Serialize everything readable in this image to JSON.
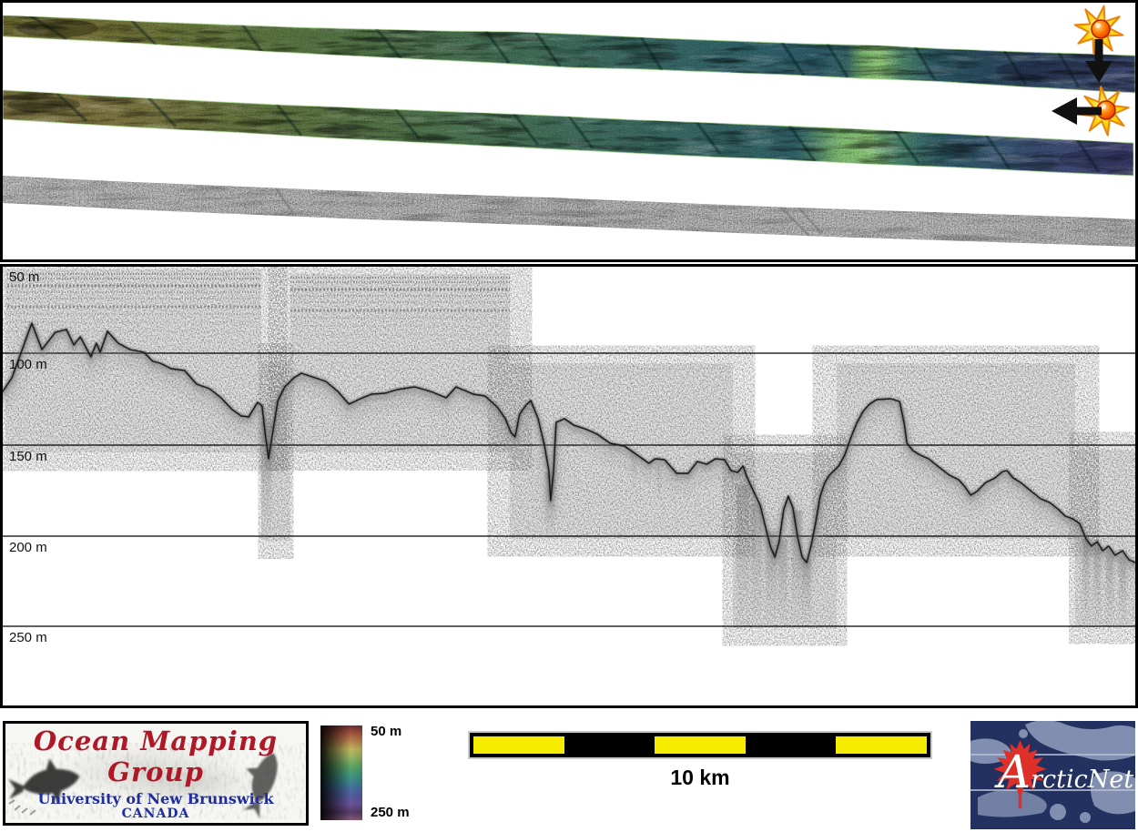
{
  "top_panel": {
    "icons": {
      "marker1": "starburst-down-arrow",
      "marker2": "starburst-left-arrow"
    },
    "colors": {
      "star_yellow": "#ffd400",
      "star_outline": "#e8830f",
      "star_ball": "#ff5500",
      "arrow_black": "#111111"
    }
  },
  "profile": {
    "depth_labels": [
      "50 m",
      "100 m",
      "150 m",
      "200 m",
      "250 m"
    ]
  },
  "colorbar": {
    "top_label": "50 m",
    "bottom_label": "250 m",
    "colors_top_to_bottom": [
      "#6e3434",
      "#b05944",
      "#c28a52",
      "#ccc062",
      "#9fbe68",
      "#6cb169",
      "#4aa37f",
      "#3f9398",
      "#4b74a8",
      "#5c60a8",
      "#7158a0",
      "#5c4070",
      "#8f5f7e"
    ]
  },
  "scalebar": {
    "label": "10 km",
    "segment_colors": [
      "#f6ec00",
      "#000000",
      "#f6ec00",
      "#000000",
      "#f6ec00"
    ]
  },
  "logos": {
    "omg": {
      "title": "Ocean Mapping Group",
      "subtitle": "University of New Brunswick",
      "country": "CANADA",
      "title_color": "#b01828",
      "text_blue": "#1f2d9e"
    },
    "arcticnet": {
      "text": "ArcticNet",
      "bg": "#22315f",
      "land": "#8693b4",
      "leaf": "#de2f28"
    }
  },
  "chart_data": {
    "type": "line",
    "title": "",
    "x_unit": "km",
    "y_unit": "m depth",
    "y_ticks": [
      "50 m",
      "100 m",
      "150 m",
      "200 m",
      "250 m"
    ],
    "y_range": [
      50,
      295
    ],
    "y_inverted": true,
    "x_range": [
      0,
      24.7
    ],
    "scale_bar_label": "10 km",
    "series": [
      {
        "name": "seafloor-subbottom-profile",
        "x_km": [
          0,
          0.2,
          0.63,
          0.85,
          1.14,
          1.38,
          1.54,
          1.68,
          1.91,
          2.03,
          2.11,
          2.27,
          2.5,
          2.76,
          3.06,
          3.25,
          3.41,
          3.65,
          3.94,
          4.2,
          4.48,
          4.73,
          4.97,
          5.17,
          5.33,
          5.52,
          5.62,
          5.68,
          5.76,
          5.84,
          5.96,
          6.11,
          6.31,
          6.47,
          6.71,
          7.0,
          7.26,
          7.5,
          7.75,
          7.99,
          8.28,
          8.54,
          8.93,
          9.27,
          9.61,
          9.82,
          10.2,
          10.45,
          10.71,
          10.89,
          11.01,
          11.1,
          11.2,
          11.34,
          11.44,
          11.6,
          11.74,
          11.83,
          11.87,
          11.93,
          11.99,
          12.17,
          12.37,
          12.66,
          12.88,
          13.16,
          13.47,
          13.75,
          14.0,
          14.14,
          14.34,
          14.6,
          14.85,
          15.05,
          15.25,
          15.44,
          15.64,
          15.78,
          15.92,
          16.04,
          16.13,
          16.27,
          16.41,
          16.53,
          16.63,
          16.73,
          16.82,
          16.92,
          17.02,
          17.12,
          17.22,
          17.32,
          17.42,
          17.51,
          17.61,
          17.71,
          17.81,
          17.91,
          18.01,
          18.11,
          18.24,
          18.38,
          18.5,
          18.64,
          18.78,
          18.93,
          19.23,
          19.43,
          19.53,
          19.59,
          19.72,
          19.88,
          20.06,
          20.28,
          20.51,
          20.71,
          20.85,
          20.97,
          21.1,
          21.3,
          21.5,
          21.66,
          21.76,
          21.89,
          22.05,
          22.15,
          22.29,
          22.49,
          22.68,
          22.88,
          23.02,
          23.18,
          23.33,
          23.47,
          23.59,
          23.71,
          23.83,
          23.96,
          24.1,
          24.26,
          24.4,
          24.54
        ],
        "depth_m": [
          121,
          113.5,
          83.5,
          98,
          88.5,
          87,
          95.5,
          91,
          102,
          94.5,
          99.5,
          88,
          94.5,
          98,
          99.5,
          104.5,
          105.5,
          108.5,
          109.5,
          117,
          119.5,
          124.5,
          131,
          134.5,
          135,
          127,
          129,
          143,
          158,
          145,
          126,
          118.5,
          113.5,
          111,
          113,
          115.5,
          121,
          128,
          125,
          122.5,
          122,
          120,
          118.5,
          121,
          124.5,
          118.5,
          122.5,
          123.5,
          129.5,
          136,
          143.5,
          146,
          133.5,
          128.5,
          126,
          136,
          151,
          164.5,
          181,
          166,
          138,
          136,
          139.5,
          142,
          144.5,
          149.5,
          151,
          156,
          160.5,
          158,
          158.5,
          166,
          166,
          159.5,
          161,
          158,
          158.5,
          164.5,
          165.5,
          162,
          168.5,
          176,
          183.5,
          196,
          206,
          212,
          203.5,
          186,
          178.5,
          185,
          201,
          212,
          215,
          206,
          193.5,
          178.5,
          171,
          167,
          164.5,
          162,
          156,
          146,
          138.5,
          132,
          128,
          125.5,
          125,
          126.5,
          138.5,
          149.5,
          153.5,
          156,
          158,
          162.5,
          167,
          169.5,
          173.5,
          178,
          176,
          171,
          168.5,
          165,
          164.5,
          168.5,
          171,
          173,
          176,
          180,
          182,
          186,
          189.5,
          191,
          193.5,
          202,
          206,
          203.5,
          208.5,
          206,
          211,
          208.5,
          213.5,
          215
        ]
      }
    ]
  }
}
